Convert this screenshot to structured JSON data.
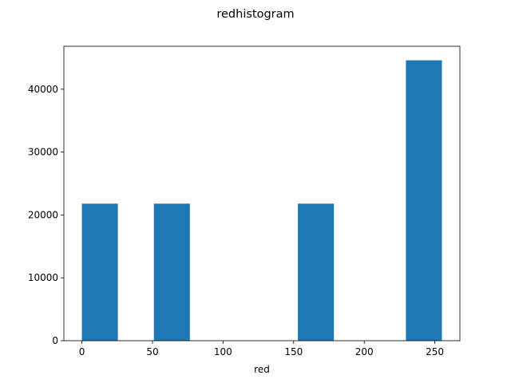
{
  "chart_data": {
    "type": "bar",
    "title": "redhistogram",
    "xlabel": "red",
    "ylabel": "",
    "bar_color": "#1f77b4",
    "bins": [
      {
        "x0": 0.0,
        "x1": 25.5,
        "count": 21800
      },
      {
        "x0": 25.5,
        "x1": 51.0,
        "count": 0
      },
      {
        "x0": 51.0,
        "x1": 76.5,
        "count": 21800
      },
      {
        "x0": 76.5,
        "x1": 102.0,
        "count": 0
      },
      {
        "x0": 102.0,
        "x1": 127.5,
        "count": 0
      },
      {
        "x0": 127.5,
        "x1": 153.0,
        "count": 0
      },
      {
        "x0": 153.0,
        "x1": 178.5,
        "count": 21800
      },
      {
        "x0": 178.5,
        "x1": 204.0,
        "count": 0
      },
      {
        "x0": 204.0,
        "x1": 229.5,
        "count": 0
      },
      {
        "x0": 229.5,
        "x1": 255.0,
        "count": 44600
      }
    ],
    "xlim": [
      -12.75,
      267.75
    ],
    "ylim": [
      0,
      46830
    ],
    "xticks": [
      0,
      50,
      100,
      150,
      200,
      250
    ],
    "yticks": [
      0,
      10000,
      20000,
      30000,
      40000
    ],
    "grid": false,
    "legend": "none"
  }
}
